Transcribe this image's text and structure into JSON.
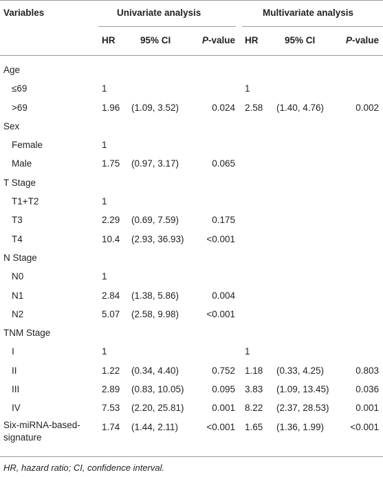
{
  "header": {
    "variables": "Variables",
    "univariate": "Univariate analysis",
    "multivariate": "Multivariate analysis"
  },
  "subheader": {
    "hr": "HR",
    "ci": "95% CI",
    "p_italic": "P",
    "p_suffix": "-value"
  },
  "rows": [
    {
      "label": "Age",
      "indent": false,
      "u_hr": "",
      "u_ci": "",
      "u_p": "",
      "m_hr": "",
      "m_ci": "",
      "m_p": ""
    },
    {
      "label": "≤69",
      "indent": true,
      "u_hr": "1",
      "u_ci": "",
      "u_p": "",
      "m_hr": "1",
      "m_ci": "",
      "m_p": ""
    },
    {
      "label": ">69",
      "indent": true,
      "u_hr": "1.96",
      "u_ci": "(1.09, 3.52)",
      "u_p": "0.024",
      "m_hr": "2.58",
      "m_ci": "(1.40, 4.76)",
      "m_p": "0.002"
    },
    {
      "label": "Sex",
      "indent": false,
      "u_hr": "",
      "u_ci": "",
      "u_p": "",
      "m_hr": "",
      "m_ci": "",
      "m_p": ""
    },
    {
      "label": "Female",
      "indent": true,
      "u_hr": "1",
      "u_ci": "",
      "u_p": "",
      "m_hr": "",
      "m_ci": "",
      "m_p": ""
    },
    {
      "label": "Male",
      "indent": true,
      "u_hr": "1.75",
      "u_ci": "(0.97, 3.17)",
      "u_p": "0.065",
      "m_hr": "",
      "m_ci": "",
      "m_p": ""
    },
    {
      "label": "T Stage",
      "indent": false,
      "u_hr": "",
      "u_ci": "",
      "u_p": "",
      "m_hr": "",
      "m_ci": "",
      "m_p": ""
    },
    {
      "label": "T1+T2",
      "indent": true,
      "u_hr": "1",
      "u_ci": "",
      "u_p": "",
      "m_hr": "",
      "m_ci": "",
      "m_p": ""
    },
    {
      "label": "T3",
      "indent": true,
      "u_hr": "2.29",
      "u_ci": "(0.69, 7.59)",
      "u_p": "0.175",
      "m_hr": "",
      "m_ci": "",
      "m_p": ""
    },
    {
      "label": "T4",
      "indent": true,
      "u_hr": "10.4",
      "u_ci": "(2.93, 36.93)",
      "u_p": "<0.001",
      "m_hr": "",
      "m_ci": "",
      "m_p": ""
    },
    {
      "label": "N Stage",
      "indent": false,
      "u_hr": "",
      "u_ci": "",
      "u_p": "",
      "m_hr": "",
      "m_ci": "",
      "m_p": ""
    },
    {
      "label": "N0",
      "indent": true,
      "u_hr": "1",
      "u_ci": "",
      "u_p": "",
      "m_hr": "",
      "m_ci": "",
      "m_p": ""
    },
    {
      "label": "N1",
      "indent": true,
      "u_hr": "2.84",
      "u_ci": "(1.38, 5.86)",
      "u_p": "0.004",
      "m_hr": "",
      "m_ci": "",
      "m_p": ""
    },
    {
      "label": "N2",
      "indent": true,
      "u_hr": "5.07",
      "u_ci": "(2.58, 9.98)",
      "u_p": "<0.001",
      "m_hr": "",
      "m_ci": "",
      "m_p": ""
    },
    {
      "label": "TNM Stage",
      "indent": false,
      "u_hr": "",
      "u_ci": "",
      "u_p": "",
      "m_hr": "",
      "m_ci": "",
      "m_p": ""
    },
    {
      "label": "I",
      "indent": true,
      "u_hr": "1",
      "u_ci": "",
      "u_p": "",
      "m_hr": "1",
      "m_ci": "",
      "m_p": ""
    },
    {
      "label": "II",
      "indent": true,
      "u_hr": "1.22",
      "u_ci": "(0.34, 4.40)",
      "u_p": "0.752",
      "m_hr": "1.18",
      "m_ci": "(0.33, 4.25)",
      "m_p": "0.803"
    },
    {
      "label": "III",
      "indent": true,
      "u_hr": "2.89",
      "u_ci": "(0.83, 10.05)",
      "u_p": "0.095",
      "m_hr": "3.83",
      "m_ci": "(1.09, 13.45)",
      "m_p": "0.036"
    },
    {
      "label": "IV",
      "indent": true,
      "u_hr": "7.53",
      "u_ci": "(2.20, 25.81)",
      "u_p": "0.001",
      "m_hr": "8.22",
      "m_ci": "(2.37, 28.53)",
      "m_p": "0.001"
    }
  ],
  "last_row": {
    "label_line1": "Six-miRNA-based-",
    "label_line2": "signature",
    "u_hr": "1.74",
    "u_ci": "(1.44, 2.11)",
    "u_p": "<0.001",
    "m_hr": "1.65",
    "m_ci": "(1.36, 1.99)",
    "m_p": "<0.001"
  },
  "footnote": "HR, hazard ratio; CI, confidence interval."
}
